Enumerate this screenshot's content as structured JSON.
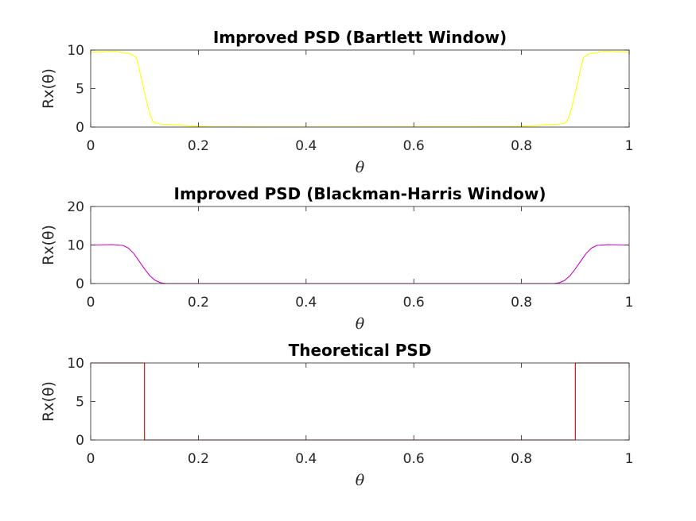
{
  "chart_data": [
    {
      "type": "line",
      "title": "Improved PSD (Bartlett Window)",
      "xlabel": "θ",
      "ylabel": "Rx(θ)",
      "xlim": [
        0,
        1
      ],
      "ylim": [
        0,
        10
      ],
      "xticks": [
        "0",
        "0.2",
        "0.4",
        "0.6",
        "0.8",
        "1"
      ],
      "yticks": [
        "0",
        "5",
        "10"
      ],
      "grid": false,
      "color": "#ffff00",
      "x": [
        0,
        0.02,
        0.04,
        0.05,
        0.06,
        0.075,
        0.085,
        0.09,
        0.095,
        0.1,
        0.105,
        0.11,
        0.115,
        0.12,
        0.13,
        0.15,
        0.2,
        0.22,
        0.3,
        0.78,
        0.8,
        0.85,
        0.87,
        0.88,
        0.885,
        0.89,
        0.895,
        0.9,
        0.905,
        0.91,
        0.915,
        0.925,
        0.94,
        0.95,
        0.96,
        0.98,
        1
      ],
      "y": [
        9.7,
        9.75,
        9.85,
        9.8,
        9.65,
        9.5,
        9.0,
        7.6,
        6.0,
        4.5,
        3.0,
        1.7,
        0.8,
        0.5,
        0.4,
        0.3,
        0.1,
        0.05,
        0.02,
        0.05,
        0.1,
        0.3,
        0.4,
        0.5,
        0.8,
        1.7,
        3.0,
        4.5,
        6.0,
        7.6,
        9.0,
        9.5,
        9.65,
        9.8,
        9.85,
        9.75,
        9.7
      ]
    },
    {
      "type": "line",
      "title": "Improved PSD (Blackman-Harris Window)",
      "xlabel": "θ",
      "ylabel": "Rx(θ)",
      "xlim": [
        0,
        1
      ],
      "ylim": [
        0,
        20
      ],
      "xticks": [
        "0",
        "0.2",
        "0.4",
        "0.6",
        "0.8",
        "1"
      ],
      "yticks": [
        "0",
        "10",
        "20"
      ],
      "grid": false,
      "color": "#cc00cc",
      "x": [
        0,
        0.02,
        0.04,
        0.06,
        0.07,
        0.08,
        0.09,
        0.1,
        0.11,
        0.12,
        0.13,
        0.14,
        0.2,
        0.8,
        0.86,
        0.87,
        0.88,
        0.89,
        0.9,
        0.91,
        0.92,
        0.93,
        0.94,
        0.96,
        0.98,
        1
      ],
      "y": [
        10,
        10.05,
        10.1,
        9.9,
        9.2,
        7.8,
        5.8,
        3.8,
        2.0,
        0.8,
        0.2,
        0,
        0,
        0,
        0,
        0.2,
        0.8,
        2.0,
        3.8,
        5.8,
        7.8,
        9.2,
        9.9,
        10.1,
        10.05,
        10
      ]
    },
    {
      "type": "line",
      "title": "Theoretical PSD",
      "xlabel": "θ",
      "ylabel": "Rx(θ)",
      "xlim": [
        0,
        1
      ],
      "ylim": [
        0,
        10
      ],
      "xticks": [
        "0",
        "0.2",
        "0.4",
        "0.6",
        "0.8",
        "1"
      ],
      "yticks": [
        "0",
        "5",
        "10"
      ],
      "grid": false,
      "color": "#cc0000",
      "x": [
        0,
        0.1,
        0.1,
        0.9,
        0.9,
        1
      ],
      "y": [
        10,
        10,
        0,
        0,
        10,
        10
      ]
    }
  ]
}
